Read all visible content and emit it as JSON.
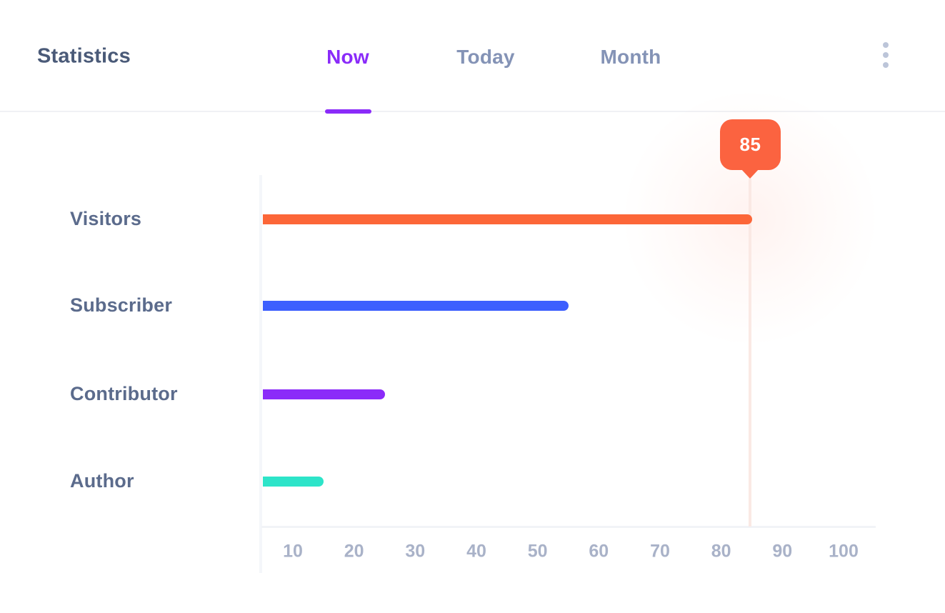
{
  "header": {
    "title": "Statistics",
    "tabs": [
      {
        "label": "Now",
        "active": true
      },
      {
        "label": "Today",
        "active": false
      },
      {
        "label": "Month",
        "active": false
      }
    ],
    "menu_icon": "kebab-vertical-dots-icon"
  },
  "colors": {
    "accent_purple": "#8A2BF9",
    "title_text": "#4A5A78",
    "inactive_tab_text": "#8493B6",
    "row_label_text": "#5B6B8C",
    "tick_label_text": "#A9B2C8",
    "divider": "#F0F1F5",
    "axis_line": "#F1F3F7",
    "tooltip_bg": "#FB6340",
    "highlight_line": "#FAE9E4",
    "kebab_dots": "#BCC5D9"
  },
  "chart_data": {
    "type": "bar",
    "orientation": "horizontal",
    "title": "Statistics",
    "categories": [
      "Visitors",
      "Subscriber",
      "Contributor",
      "Author"
    ],
    "values": [
      85,
      55,
      25,
      15
    ],
    "bar_colors": [
      "#FC6638",
      "#3D5FFE",
      "#8B2BF9",
      "#2DE4C9"
    ],
    "x_ticks": [
      10,
      20,
      30,
      40,
      50,
      60,
      70,
      80,
      90,
      100
    ],
    "xlim": [
      0,
      105
    ],
    "grid": false,
    "legend": "none",
    "tooltip": {
      "category": "Visitors",
      "value": 85
    }
  }
}
